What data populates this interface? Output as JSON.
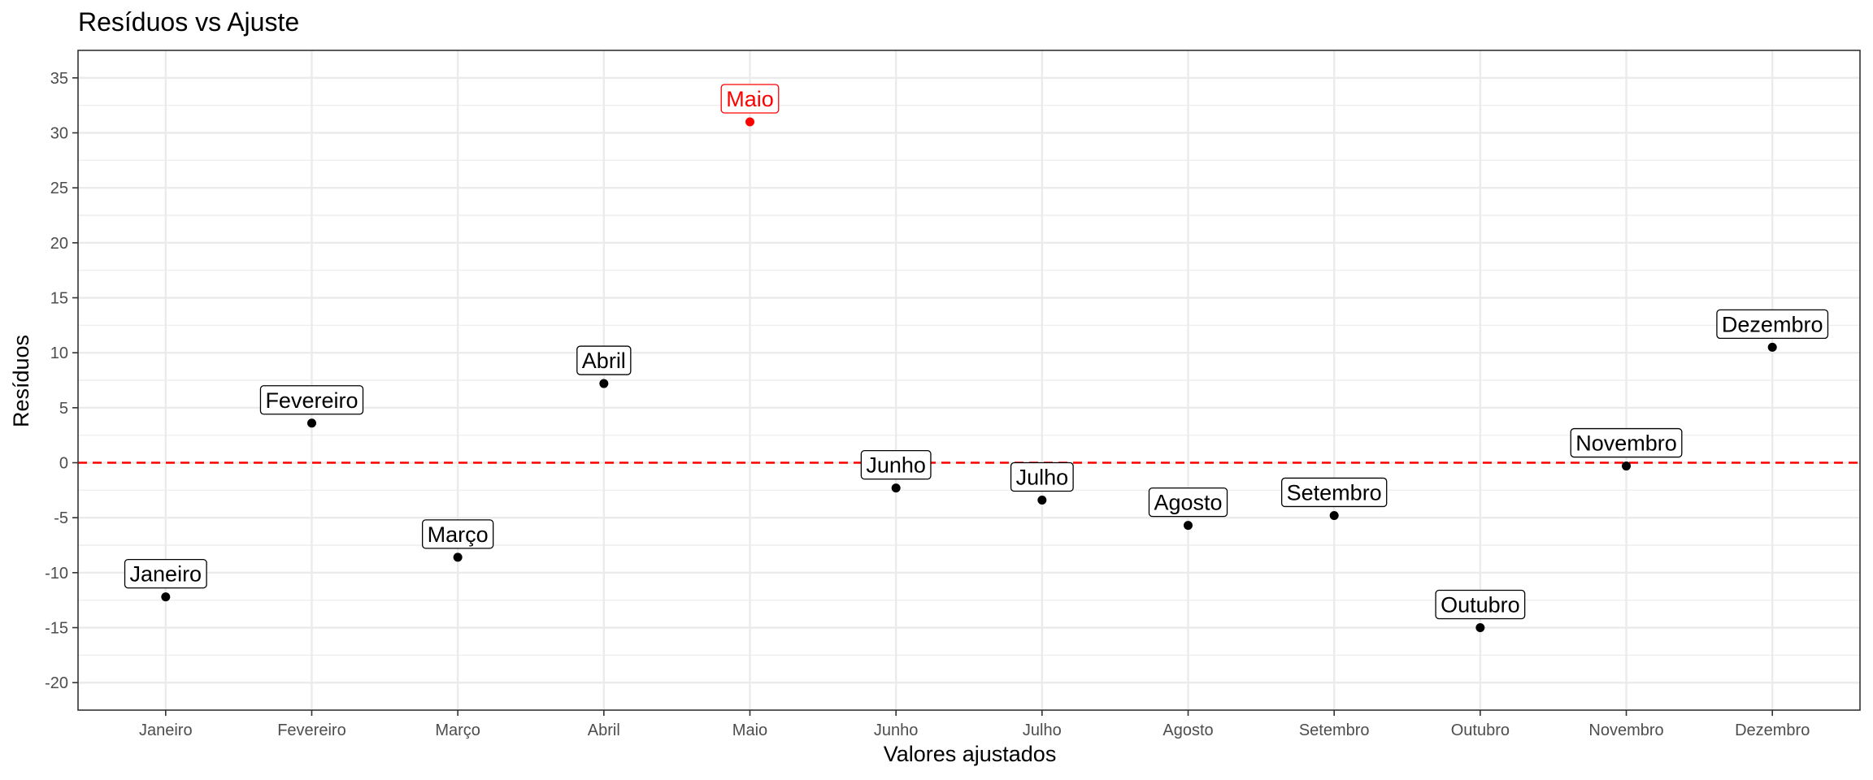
{
  "chart_data": {
    "type": "scatter",
    "title": "Resíduos vs Ajuste",
    "xlabel": "Valores ajustados",
    "ylabel": "Resíduos",
    "categories": [
      "Janeiro",
      "Fevereiro",
      "Março",
      "Abril",
      "Maio",
      "Junho",
      "Julho",
      "Agosto",
      "Setembro",
      "Outubro",
      "Novembro",
      "Dezembro"
    ],
    "values": [
      -12.2,
      3.6,
      -8.6,
      7.2,
      31.0,
      -2.3,
      -3.4,
      -5.7,
      -4.8,
      -15.0,
      -0.3,
      10.5
    ],
    "highlight": "Maio",
    "ylim": [
      -22.5,
      37.5
    ],
    "yticks": [
      -20,
      -15,
      -10,
      -5,
      0,
      5,
      10,
      15,
      20,
      25,
      30,
      35
    ],
    "reference_line": {
      "y": 0,
      "style": "dashed",
      "color": "#ff0000"
    },
    "colors": {
      "point": "#000000",
      "highlight": "#ff0000",
      "grid": "#ebebeb",
      "panel_border": "#333333"
    },
    "grid": true
  }
}
